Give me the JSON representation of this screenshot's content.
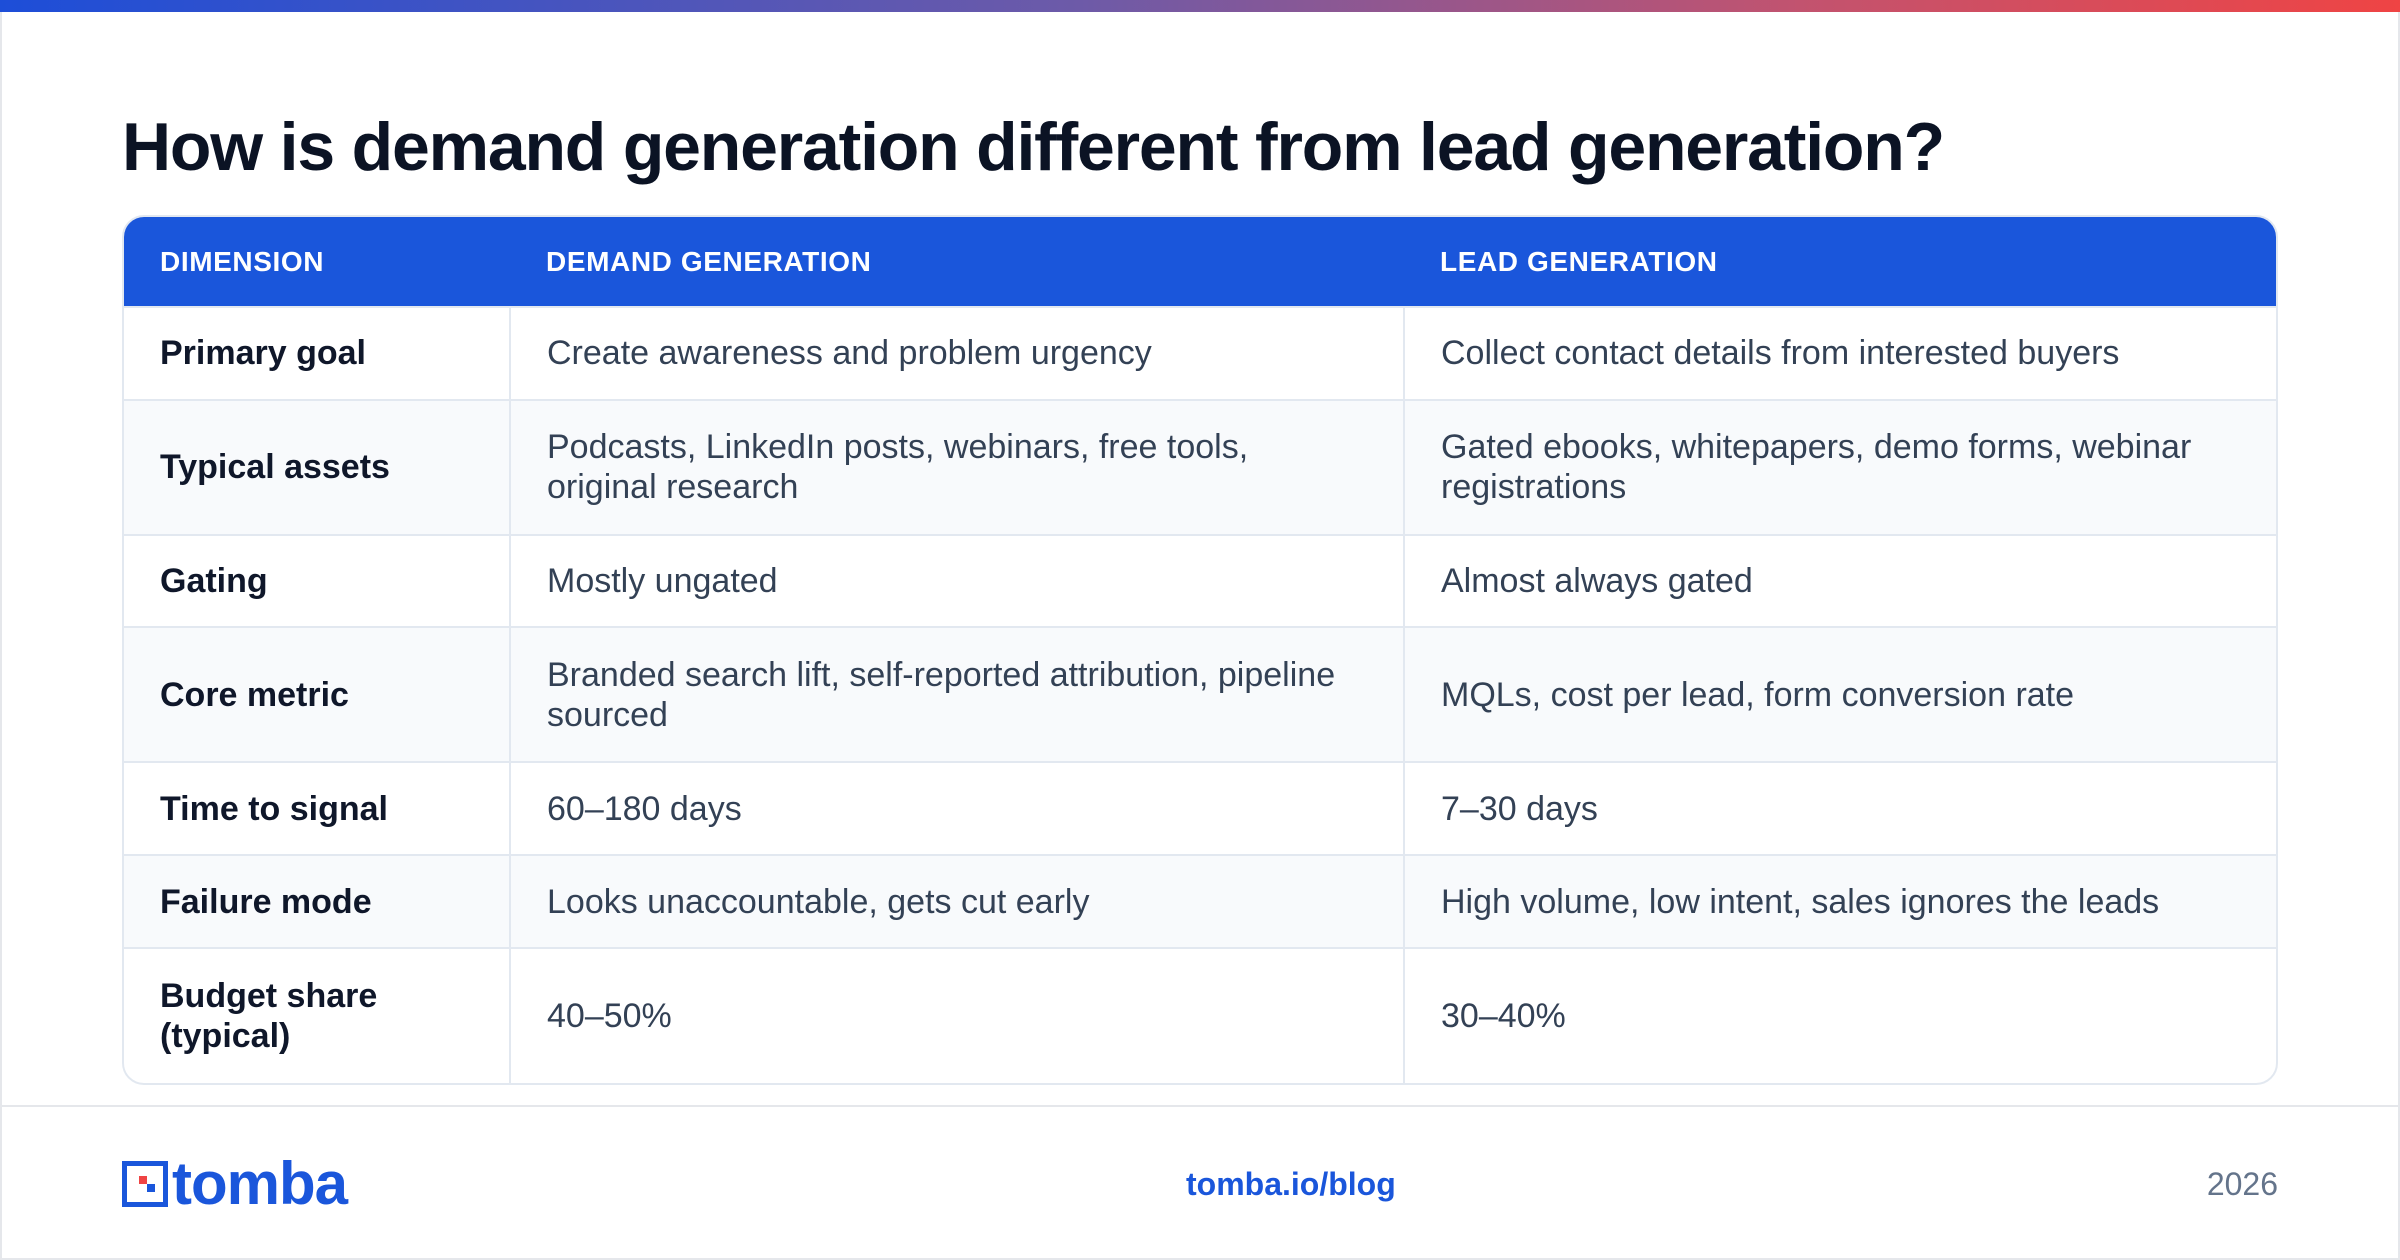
{
  "title": "How is demand generation different from lead generation?",
  "table": {
    "headers": [
      "DIMENSION",
      "DEMAND GENERATION",
      "LEAD GENERATION"
    ],
    "rows": [
      {
        "dimension": "Primary goal",
        "demand": "Create awareness and problem urgency",
        "lead": "Collect contact details from interested buyers"
      },
      {
        "dimension": "Typical assets",
        "demand": "Podcasts, LinkedIn posts, webinars, free tools, original research",
        "lead": "Gated ebooks, whitepapers, demo forms, webinar registrations"
      },
      {
        "dimension": "Gating",
        "demand": "Mostly ungated",
        "lead": "Almost always gated"
      },
      {
        "dimension": "Core metric",
        "demand": "Branded search lift, self-reported attribution, pipeline sourced",
        "lead": "MQLs, cost per lead, form conversion rate"
      },
      {
        "dimension": "Time to signal",
        "demand": "60–180 days",
        "lead": "7–30 days"
      },
      {
        "dimension": "Failure mode",
        "demand": "Looks unaccountable, gets cut early",
        "lead": "High volume, low intent, sales ignores the leads"
      },
      {
        "dimension": "Budget share (typical)",
        "demand": "40–50%",
        "lead": "30–40%"
      }
    ]
  },
  "footer": {
    "logo_text": "tomba",
    "link": "tomba.io/blog",
    "year": "2026"
  },
  "colors": {
    "accent": "#1a56db",
    "gradient_start": "#1d4ed8",
    "gradient_end": "#ef4444"
  },
  "icons": {
    "logo": "tomba-logo-icon"
  }
}
